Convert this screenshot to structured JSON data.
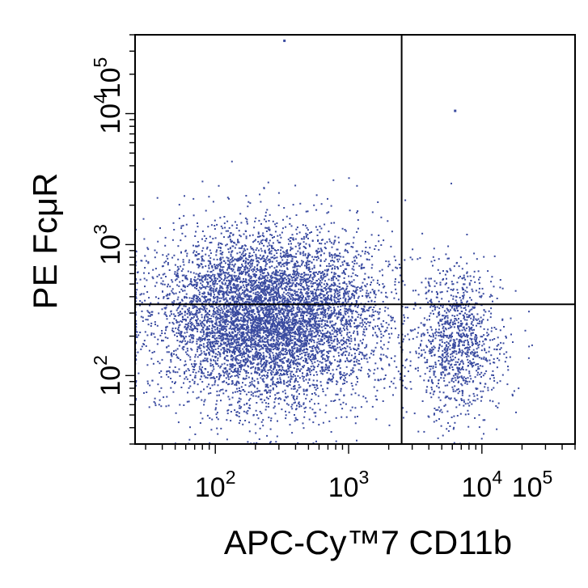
{
  "chart_data": {
    "type": "scatter",
    "plot": "flow cytometry dot plot",
    "xlabel": "APC-Cy™7 CD11b",
    "ylabel": "PE   FcμR",
    "x_scale": "log",
    "y_scale": "log",
    "xlim": [
      25,
      50000
    ],
    "ylim": [
      30,
      40000
    ],
    "x_ticks": [
      {
        "base": "10",
        "exp": "2",
        "value": 100
      },
      {
        "base": "10",
        "exp": "3",
        "value": 1000
      },
      {
        "base": "10",
        "exp": "4",
        "value": 10000
      },
      {
        "base": "10",
        "exp": "5",
        "value": 100000
      }
    ],
    "y_ticks": [
      {
        "base": "10",
        "exp": "2",
        "value": 100
      },
      {
        "base": "10",
        "exp": "3",
        "value": 1000
      },
      {
        "base": "10",
        "exp": "4",
        "value": 10000
      },
      {
        "base": "10",
        "exp": "5",
        "value": 100000
      }
    ],
    "quadrant_gates": {
      "x": 2500,
      "y": 350
    },
    "dot_color": "#3a4ba0",
    "populations": [
      {
        "center_x": 250,
        "center_y": 280,
        "spread_log_x": 0.42,
        "spread_log_y": 0.33,
        "count": 7000
      },
      {
        "center_x": 6500,
        "center_y": 180,
        "spread_log_x": 0.17,
        "spread_log_y": 0.28,
        "count": 1100
      }
    ],
    "outliers": [
      {
        "x": 6300,
        "y": 10500
      },
      {
        "x": 330,
        "y": 36000
      }
    ]
  }
}
